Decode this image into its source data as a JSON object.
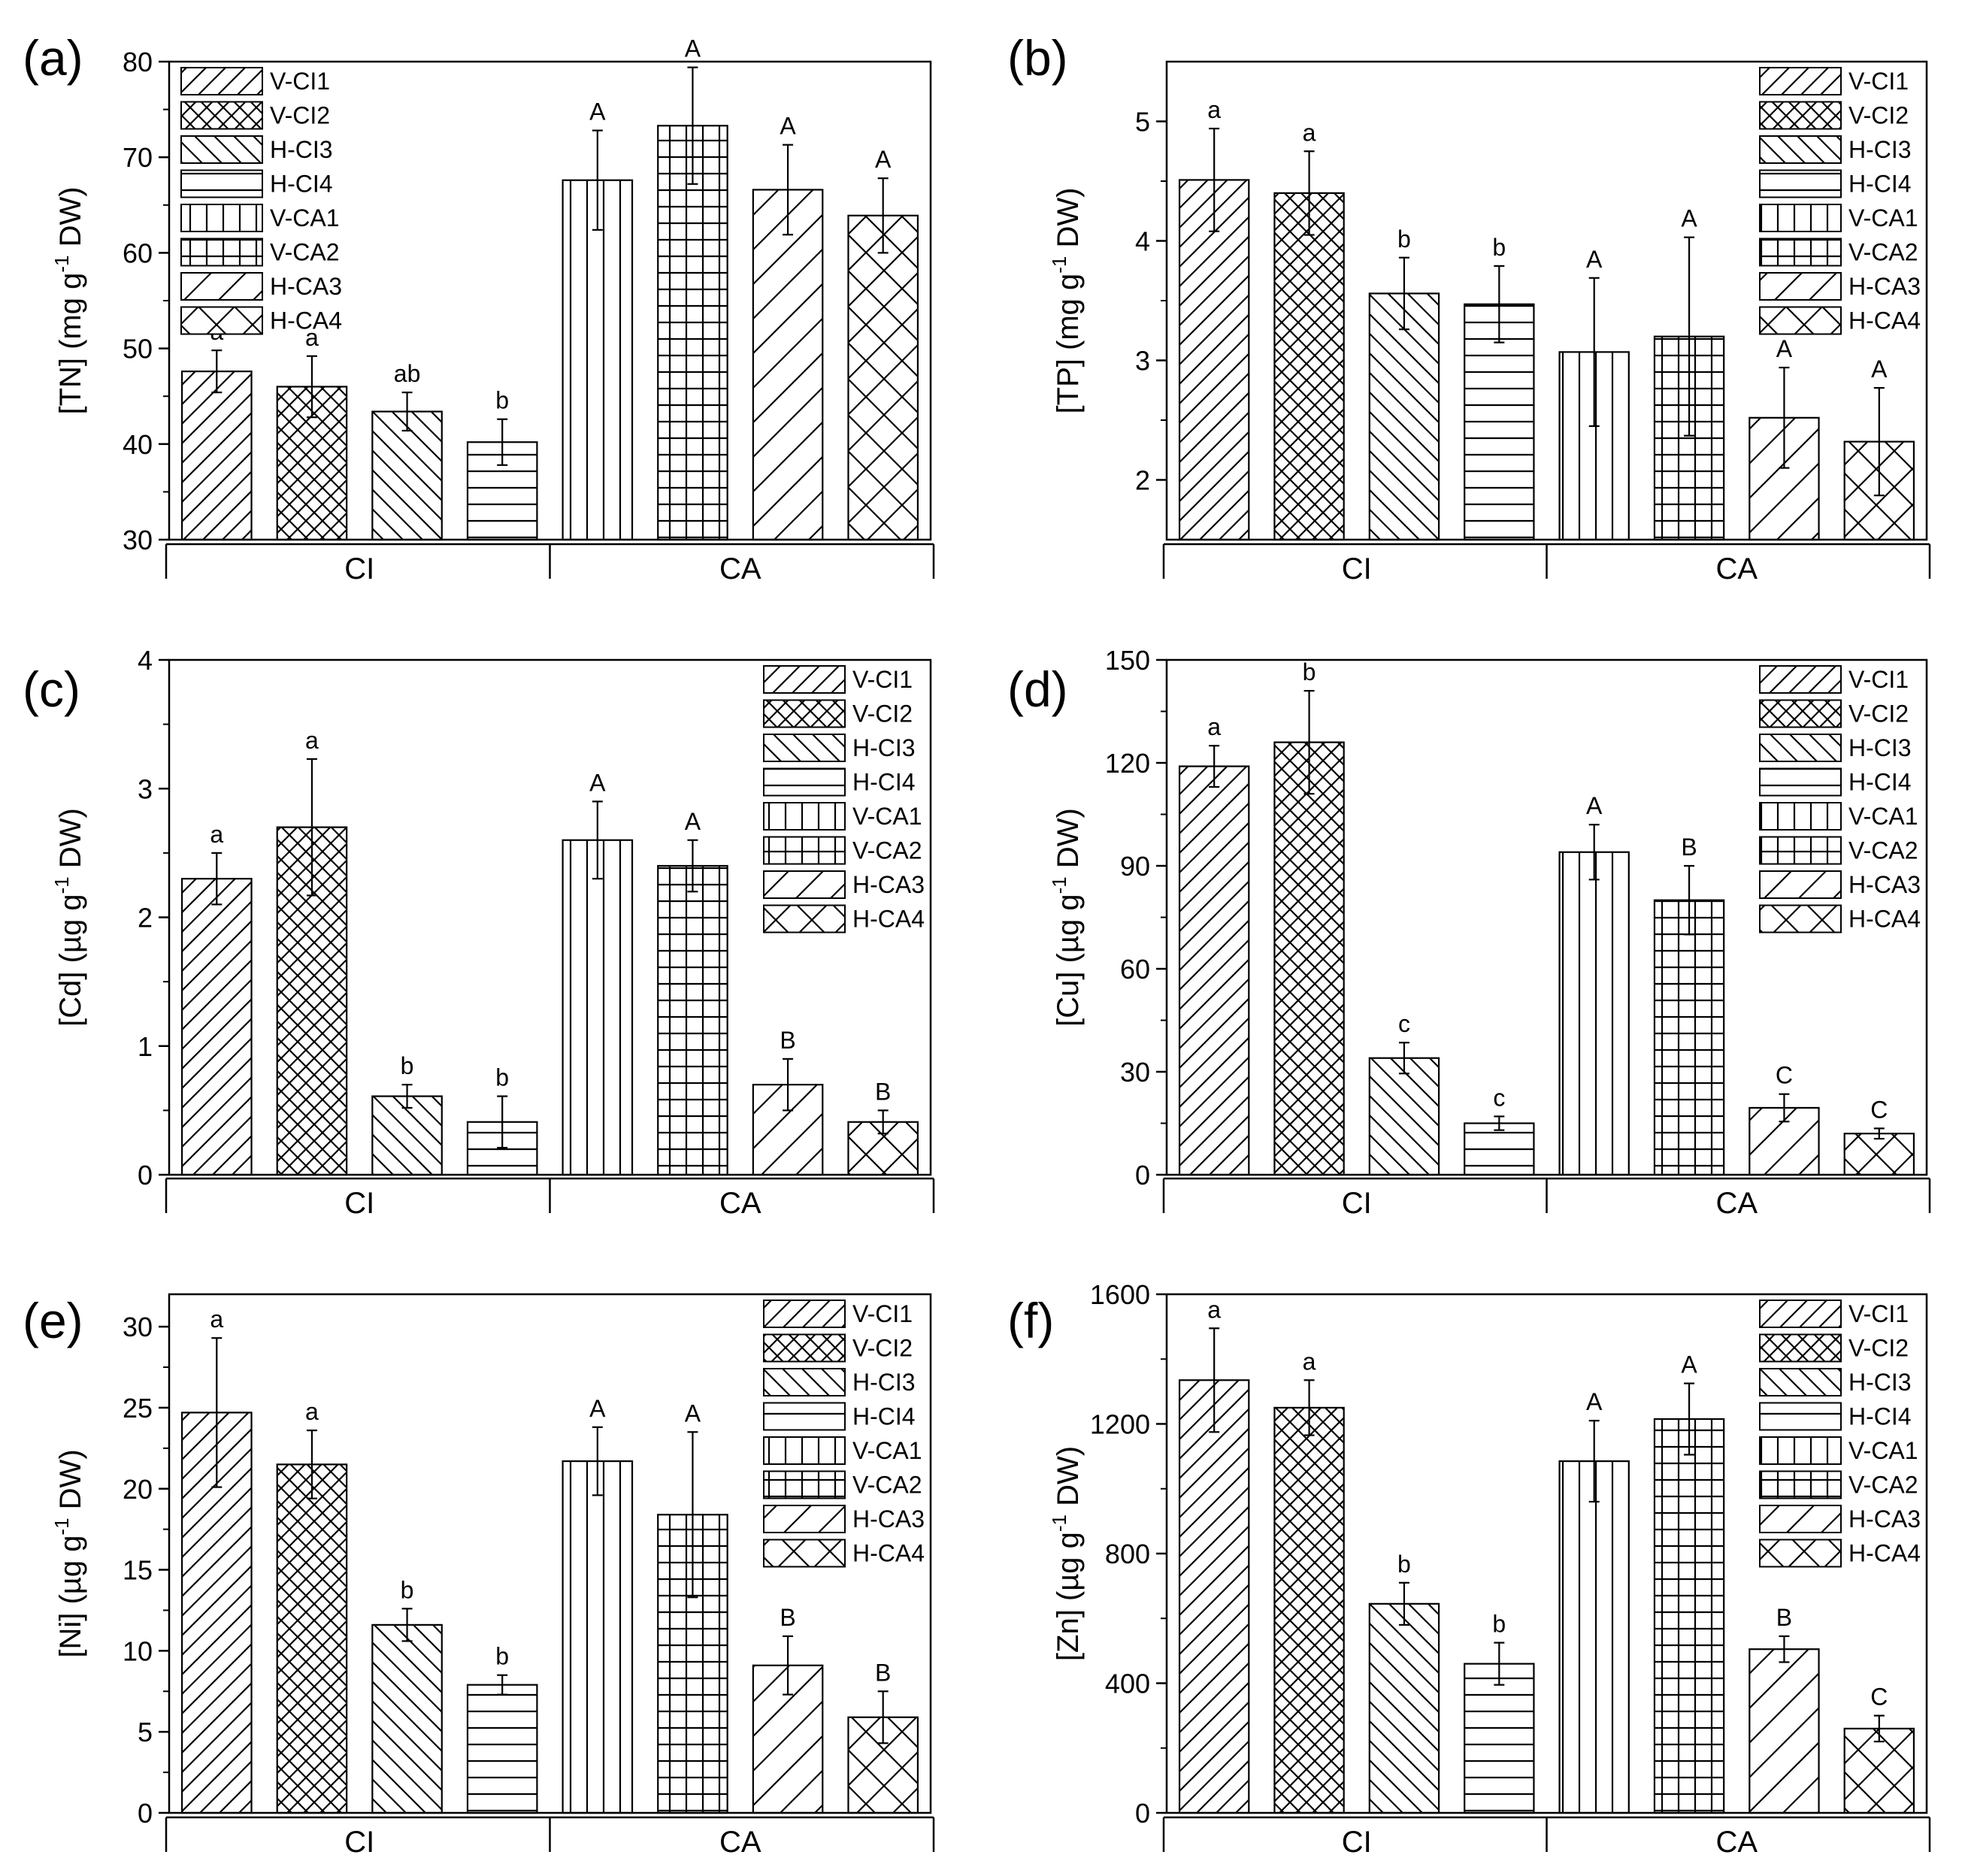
{
  "figure": {
    "legend_labels": [
      "V-CI1",
      "V-CI2",
      "H-CI3",
      "H-CI4",
      "V-CA1",
      "V-CA2",
      "H-CA3",
      "H-CA4"
    ],
    "legend_patterns": [
      "diag-right",
      "crosshatch",
      "diag-left",
      "horizontal",
      "vertical",
      "grid",
      "diag-right-sparse",
      "diag-x-sparse"
    ],
    "bar_fill": "#ffffff",
    "bar_stroke": "#000000"
  },
  "chart_data": [
    {
      "type": "bar",
      "panel": "(a)",
      "title": "",
      "ylabel_main": "[TN] (mg g",
      "ylabel_sup": "-1",
      "ylabel_tail": " DW)",
      "groups": [
        "CI",
        "CA"
      ],
      "categories": [
        "V-CI1",
        "V-CI2",
        "H-CI3",
        "H-CI4",
        "V-CA1",
        "V-CA2",
        "H-CA3",
        "H-CA4"
      ],
      "values": [
        47.6,
        46.0,
        43.4,
        40.2,
        67.6,
        73.3,
        66.6,
        63.9
      ],
      "errors": [
        2.2,
        3.2,
        2.0,
        2.4,
        5.2,
        6.1,
        4.7,
        3.9
      ],
      "significance": [
        "a",
        "a",
        "ab",
        "b",
        "A",
        "A",
        "A",
        "A"
      ],
      "ylim": [
        30,
        80
      ],
      "yticks": [
        30,
        40,
        50,
        60,
        70,
        80
      ],
      "legend_position": "top-left"
    },
    {
      "type": "bar",
      "panel": "(b)",
      "title": "",
      "ylabel_main": "[TP] (mg g",
      "ylabel_sup": "-1",
      "ylabel_tail": " DW)",
      "groups": [
        "CI",
        "CA"
      ],
      "categories": [
        "V-CI1",
        "V-CI2",
        "H-CI3",
        "H-CI4",
        "V-CA1",
        "V-CA2",
        "H-CA3",
        "H-CA4"
      ],
      "values": [
        4.51,
        4.4,
        3.56,
        3.47,
        3.07,
        3.2,
        2.52,
        2.32
      ],
      "errors": [
        0.43,
        0.35,
        0.3,
        0.32,
        0.62,
        0.83,
        0.42,
        0.45
      ],
      "significance": [
        "a",
        "a",
        "b",
        "b",
        "A",
        "A",
        "A",
        "A"
      ],
      "ylim": [
        1.5,
        5.5
      ],
      "yticks": [
        2,
        3,
        4,
        5
      ],
      "legend_position": "top-right"
    },
    {
      "type": "bar",
      "panel": "(c)",
      "title": "",
      "ylabel_main": "[Cd] (µg g",
      "ylabel_sup": "-1",
      "ylabel_tail": " DW)",
      "groups": [
        "CI",
        "CA"
      ],
      "categories": [
        "V-CI1",
        "V-CI2",
        "H-CI3",
        "H-CI4",
        "V-CA1",
        "V-CA2",
        "H-CA3",
        "H-CA4"
      ],
      "values": [
        2.3,
        2.7,
        0.61,
        0.41,
        2.6,
        2.4,
        0.7,
        0.41
      ],
      "errors": [
        0.2,
        0.53,
        0.09,
        0.2,
        0.3,
        0.2,
        0.2,
        0.09
      ],
      "significance": [
        "a",
        "a",
        "b",
        "b",
        "A",
        "A",
        "B",
        "B"
      ],
      "ylim": [
        0,
        4
      ],
      "yticks": [
        0,
        1,
        2,
        3,
        4
      ],
      "legend_position": "top-right"
    },
    {
      "type": "bar",
      "panel": "(d)",
      "title": "",
      "ylabel_main": "[Cu] (µg g",
      "ylabel_sup": "-1",
      "ylabel_tail": " DW)",
      "groups": [
        "CI",
        "CA"
      ],
      "categories": [
        "V-CI1",
        "V-CI2",
        "H-CI3",
        "H-CI4",
        "V-CA1",
        "V-CA2",
        "H-CA3",
        "H-CA4"
      ],
      "values": [
        119,
        126,
        34,
        15,
        94,
        80,
        19.5,
        12
      ],
      "errors": [
        6,
        15,
        4.5,
        2,
        8,
        10,
        4,
        1.5
      ],
      "significance": [
        "a",
        "b",
        "c",
        "c",
        "A",
        "B",
        "C",
        "C"
      ],
      "ylim": [
        0,
        150
      ],
      "yticks": [
        0,
        30,
        60,
        90,
        120,
        150
      ],
      "legend_position": "top-right"
    },
    {
      "type": "bar",
      "panel": "(e)",
      "title": "",
      "ylabel_main": "[Ni] (µg g",
      "ylabel_sup": "-1",
      "ylabel_tail": " DW)",
      "groups": [
        "CI",
        "CA"
      ],
      "categories": [
        "V-CI1",
        "V-CI2",
        "H-CI3",
        "H-CI4",
        "V-CA1",
        "V-CA2",
        "H-CA3",
        "H-CA4"
      ],
      "values": [
        24.7,
        21.5,
        11.6,
        7.9,
        21.7,
        18.4,
        9.1,
        5.9
      ],
      "errors": [
        4.6,
        2.1,
        1.0,
        0.6,
        2.1,
        5.1,
        1.8,
        1.6
      ],
      "significance": [
        "a",
        "a",
        "b",
        "b",
        "A",
        "A",
        "B",
        "B"
      ],
      "ylim": [
        0,
        32
      ],
      "yticks": [
        0,
        5,
        10,
        15,
        20,
        25,
        30
      ],
      "legend_position": "top-right"
    },
    {
      "type": "bar",
      "panel": "(f)",
      "title": "",
      "ylabel_main": "[Zn] (µg g",
      "ylabel_sup": "-1",
      "ylabel_tail": " DW)",
      "groups": [
        "CI",
        "CA"
      ],
      "categories": [
        "V-CI1",
        "V-CI2",
        "H-CI3",
        "H-CI4",
        "V-CA1",
        "V-CA2",
        "H-CA3",
        "H-CA4"
      ],
      "values": [
        1335,
        1250,
        645,
        460,
        1085,
        1215,
        505,
        260
      ],
      "errors": [
        160,
        85,
        65,
        65,
        125,
        110,
        40,
        40
      ],
      "significance": [
        "a",
        "a",
        "b",
        "b",
        "A",
        "A",
        "B",
        "C"
      ],
      "ylim": [
        0,
        1600
      ],
      "yticks": [
        0,
        400,
        800,
        1200,
        1600
      ],
      "legend_position": "top-right"
    }
  ]
}
